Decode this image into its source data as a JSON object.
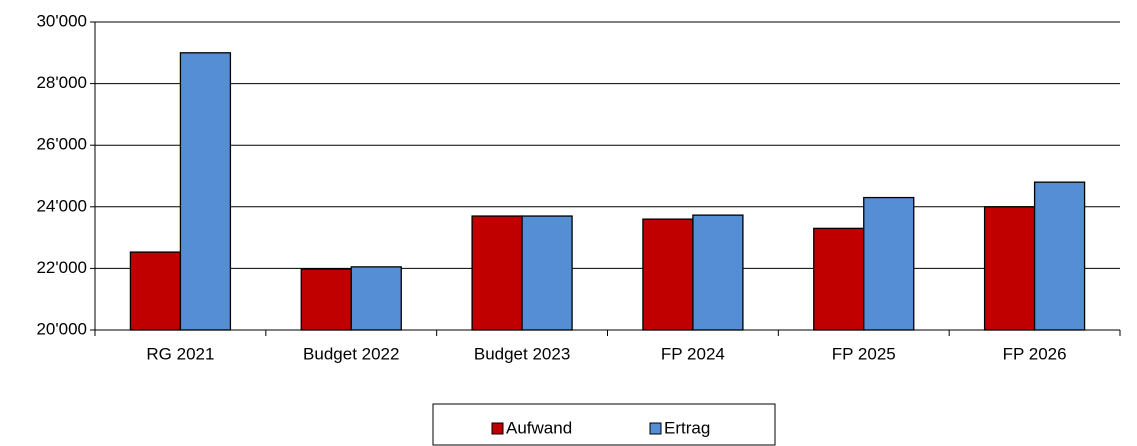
{
  "chart_data": {
    "type": "bar",
    "categories": [
      "RG 2021",
      "Budget 2022",
      "Budget 2023",
      "FP 2024",
      "FP 2025",
      "FP 2026"
    ],
    "series": [
      {
        "name": "Aufwand",
        "color": "#c00000",
        "values": [
          22530,
          21980,
          23700,
          23600,
          23300,
          24000
        ]
      },
      {
        "name": "Ertrag",
        "color": "#558ed5",
        "values": [
          29000,
          22050,
          23700,
          23730,
          24300,
          24800
        ]
      }
    ],
    "ylim": [
      20000,
      30000
    ],
    "yticks": [
      {
        "value": 20000,
        "label": "20'000"
      },
      {
        "value": 22000,
        "label": "22'000"
      },
      {
        "value": 24000,
        "label": "24'000"
      },
      {
        "value": 26000,
        "label": "26'000"
      },
      {
        "value": 28000,
        "label": "28'000"
      },
      {
        "value": 30000,
        "label": "30'000"
      }
    ],
    "grid": true,
    "legend": "bottom"
  }
}
